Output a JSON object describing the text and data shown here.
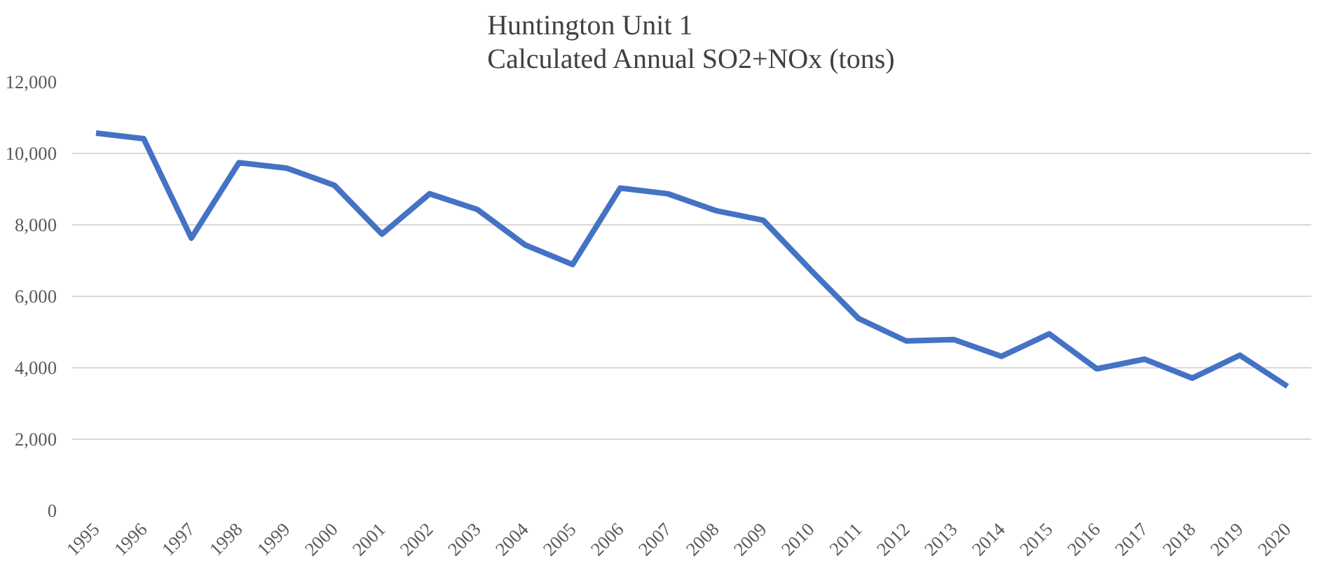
{
  "chart_data": {
    "type": "line",
    "title": "Huntington Unit 1\nCalculated Annual SO2+NOx (tons)",
    "categories": [
      "1995",
      "1996",
      "1997",
      "1998",
      "1999",
      "2000",
      "2001",
      "2002",
      "2003",
      "2004",
      "2005",
      "2006",
      "2007",
      "2008",
      "2009",
      "2010",
      "2011",
      "2012",
      "2013",
      "2014",
      "2015",
      "2016",
      "2017",
      "2018",
      "2019",
      "2020"
    ],
    "series": [
      {
        "color": "#4472c4",
        "values": [
          10570,
          10410,
          7630,
          9740,
          9590,
          9110,
          7740,
          8870,
          8430,
          7440,
          6890,
          9030,
          8870,
          8400,
          8130,
          6730,
          5380,
          4750,
          4790,
          4320,
          4950,
          3970,
          4240,
          3710,
          4350,
          3480
        ]
      }
    ],
    "ylim": [
      0,
      12000
    ],
    "yticks": [
      {
        "value": 0,
        "label": "0"
      },
      {
        "value": 2000,
        "label": "2,000"
      },
      {
        "value": 4000,
        "label": "4,000"
      },
      {
        "value": 6000,
        "label": "6,000"
      },
      {
        "value": 8000,
        "label": "8,000"
      },
      {
        "value": 10000,
        "label": "10,000"
      },
      {
        "value": 12000,
        "label": "12,000"
      }
    ],
    "grid": "y",
    "marker": "none",
    "line_style": "solid"
  }
}
